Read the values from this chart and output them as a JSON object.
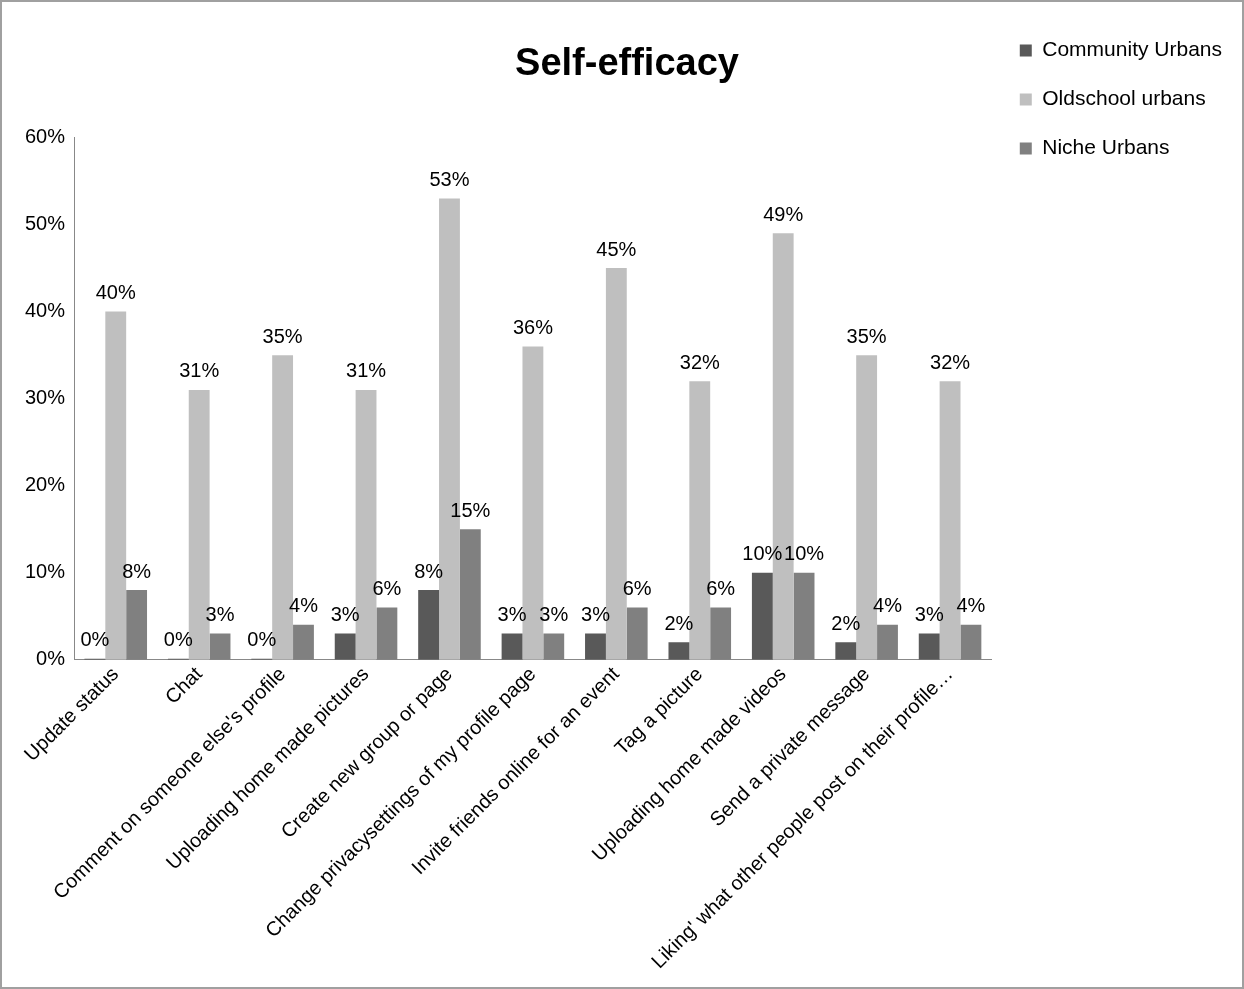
{
  "chart_data": {
    "type": "bar",
    "title": "Self-efficacy",
    "categories": [
      "Update status",
      "Chat",
      "Comment on someone else's profile",
      "Uploading home made pictures",
      "Create new group or page",
      "Change privacysettings of my profile page",
      "Invite friends online for an event",
      "Tag a picture",
      "Uploading home made videos",
      "Send a private message",
      "Liking' what other people post on their profile…"
    ],
    "series": [
      {
        "name": "Community Urbans",
        "color": "#595959",
        "values": [
          0,
          0,
          0,
          3,
          8,
          3,
          3,
          2,
          10,
          2,
          3
        ],
        "value_labels": [
          "0%",
          "0%",
          "0%",
          "3%",
          "8%",
          "3%",
          "3%",
          "2%",
          "10%",
          "2%",
          "3%"
        ]
      },
      {
        "name": "Oldschool urbans",
        "color": "#bfbfbf",
        "values": [
          40,
          31,
          35,
          31,
          53,
          36,
          45,
          32,
          49,
          35,
          32
        ],
        "value_labels": [
          "40%",
          "31%",
          "35%",
          "31%",
          "53%",
          "36%",
          "45%",
          "32%",
          "49%",
          "35%",
          "32%"
        ]
      },
      {
        "name": "Niche Urbans",
        "color": "#808080",
        "values": [
          8,
          3,
          4,
          6,
          15,
          3,
          6,
          6,
          10,
          4,
          4
        ],
        "value_labels": [
          "8%",
          "3%",
          "4%",
          "6%",
          "15%",
          "3%",
          "6%",
          "6%",
          "10%",
          "4%",
          "4%"
        ]
      }
    ],
    "ylim": [
      0,
      60
    ],
    "yticks": [
      {
        "value": 0,
        "label": "0%"
      },
      {
        "value": 10,
        "label": "10%"
      },
      {
        "value": 20,
        "label": "20%"
      },
      {
        "value": 30,
        "label": "30%"
      },
      {
        "value": 40,
        "label": "40%"
      },
      {
        "value": 50,
        "label": "50%"
      },
      {
        "value": 60,
        "label": "60%"
      }
    ],
    "grid": false,
    "legend": "top right"
  }
}
